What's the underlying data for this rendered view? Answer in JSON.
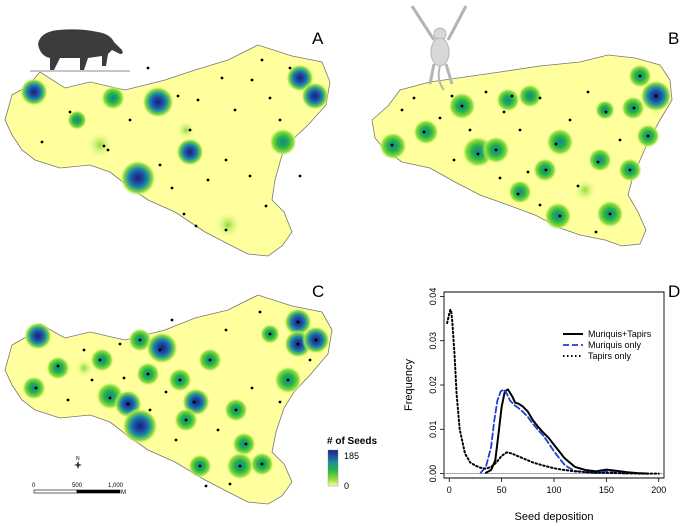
{
  "panels": {
    "a": {
      "label": "A"
    },
    "b": {
      "label": "B"
    },
    "c": {
      "label": "C"
    },
    "d": {
      "label": "D"
    }
  },
  "legend_heat": {
    "title": "# of Seeds",
    "max_label": "185",
    "min_label": "0",
    "colors": [
      "#ffff9e",
      "#8ddc3a",
      "#22b24a",
      "#1e8fa0",
      "#1f4aa0",
      "#14237a"
    ]
  },
  "scale_bar": {
    "ticks": [
      "0",
      "500",
      "1,000"
    ],
    "unit": "M",
    "north": "N"
  },
  "map_colors": {
    "fill": "#ffff9e",
    "outline": "#777777",
    "dot": "#000000"
  },
  "icons": {
    "a": "tapir-icon",
    "b": "muriqui-monkey-icon"
  },
  "chart_data": {
    "type": "line",
    "title": "",
    "xlabel": "Seed deposition",
    "ylabel": "Frequency",
    "xlim": [
      -5,
      205
    ],
    "ylim": [
      -0.001,
      0.041
    ],
    "xticks": [
      "0",
      "50",
      "100",
      "150",
      "200"
    ],
    "yticks": [
      "0.00",
      "0.01",
      "0.02",
      "0.03",
      "0.04"
    ],
    "legend_position": "top-right",
    "series": [
      {
        "name": "Muriquis+Tapirs",
        "style": "solid",
        "color": "#000000",
        "x": [
          35,
          40,
          44,
          47,
          50,
          53,
          56,
          60,
          63,
          66,
          70,
          75,
          80,
          85,
          90,
          95,
          100,
          105,
          110,
          115,
          120,
          130,
          140,
          150,
          160,
          170,
          180,
          190
        ],
        "y": [
          0.0002,
          0.0008,
          0.003,
          0.009,
          0.015,
          0.0185,
          0.019,
          0.0175,
          0.016,
          0.0158,
          0.0152,
          0.014,
          0.012,
          0.0105,
          0.0092,
          0.008,
          0.0065,
          0.005,
          0.0035,
          0.0025,
          0.0015,
          0.0008,
          0.0005,
          0.0009,
          0.0006,
          0.0003,
          0.0001,
          0.0
        ]
      },
      {
        "name": "Muriquis only",
        "style": "dashed",
        "color": "#1f3fd0",
        "x": [
          30,
          35,
          40,
          43,
          46,
          49,
          52,
          55,
          58,
          62,
          66,
          70,
          75,
          80,
          85,
          90,
          95,
          100,
          105,
          110,
          115,
          120,
          130,
          140,
          150,
          160,
          170
        ],
        "y": [
          0.0002,
          0.0015,
          0.006,
          0.012,
          0.0165,
          0.0185,
          0.019,
          0.018,
          0.0165,
          0.0155,
          0.0148,
          0.014,
          0.0128,
          0.0112,
          0.0098,
          0.0085,
          0.0068,
          0.005,
          0.0035,
          0.002,
          0.0012,
          0.0006,
          0.0003,
          0.0001,
          0.0005,
          0.0002,
          0.0
        ]
      },
      {
        "name": "Tapirs only",
        "style": "dotted",
        "color": "#000000",
        "x": [
          -2,
          0,
          1,
          2,
          3,
          5,
          7,
          10,
          15,
          20,
          25,
          30,
          35,
          40,
          45,
          50,
          55,
          60,
          65,
          70,
          75,
          80,
          90,
          100,
          110,
          120,
          140,
          160,
          180,
          200
        ],
        "y": [
          0.034,
          0.036,
          0.037,
          0.0365,
          0.034,
          0.027,
          0.018,
          0.01,
          0.0045,
          0.0025,
          0.0018,
          0.0013,
          0.0011,
          0.0015,
          0.0025,
          0.004,
          0.0048,
          0.0045,
          0.004,
          0.0035,
          0.003,
          0.0025,
          0.0018,
          0.0012,
          0.0008,
          0.0005,
          0.0002,
          0.0001,
          0.0,
          0.0
        ]
      }
    ]
  }
}
